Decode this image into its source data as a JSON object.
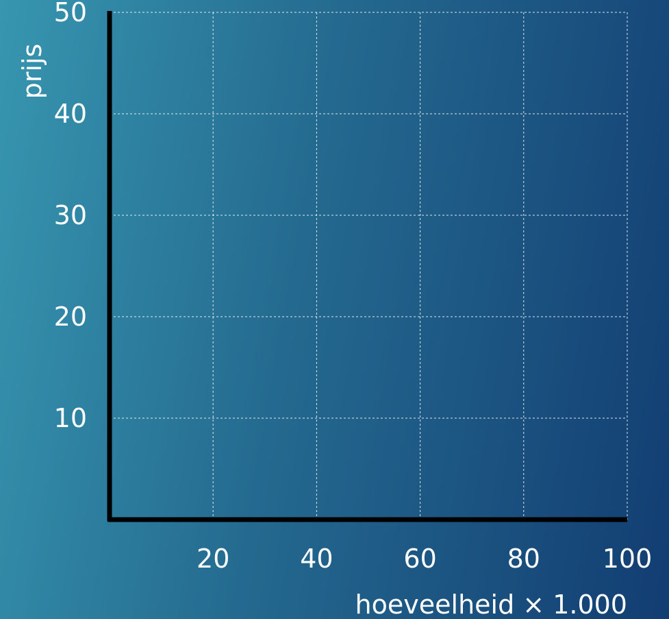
{
  "chart_data": {
    "type": "line",
    "title": "",
    "xlabel": "hoeveelheid × 1.000",
    "ylabel": "prijs",
    "x_ticks": [
      "20",
      "40",
      "60",
      "80",
      "100"
    ],
    "y_ticks": [
      "10",
      "20",
      "30",
      "40",
      "50"
    ],
    "xlim": [
      0,
      100
    ],
    "ylim": [
      0,
      50
    ],
    "grid": true,
    "series": []
  },
  "colors": {
    "grid": "#ffffff",
    "axis": "#000000",
    "text": "#ffffff"
  }
}
